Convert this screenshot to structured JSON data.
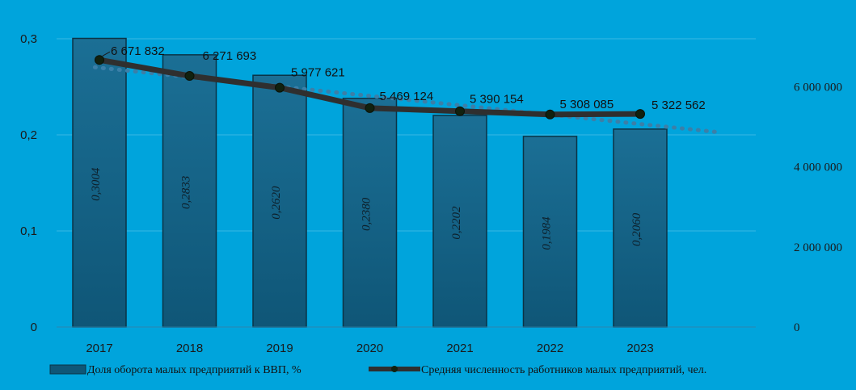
{
  "colors": {
    "background": "#00a4dc",
    "bar_fill": "#0f5677",
    "bar_stroke": "#0a3346",
    "line": "#2f2f2f",
    "marker": "#11210f",
    "trend": "#3b7fa8",
    "gridline": "#3ab7e3"
  },
  "chart_data": {
    "type": "bar",
    "categories": [
      "2017",
      "2018",
      "2019",
      "2020",
      "2021",
      "2022",
      "2023"
    ],
    "y_left": {
      "ticks": [
        "0",
        "0,1",
        "0,2",
        "0,3"
      ],
      "ylim": [
        0,
        0.3
      ]
    },
    "y_right": {
      "ticks": [
        "0",
        "2 000 000",
        "4 000 000",
        "6 000 000"
      ],
      "ylim": [
        0,
        7200000
      ]
    },
    "series": [
      {
        "name": "Доля оборота малых предприятий к ВВП, %",
        "type": "bar",
        "axis": "left",
        "values": [
          0.3004,
          0.2833,
          0.262,
          0.238,
          0.2202,
          0.1984,
          0.206
        ],
        "labels": [
          "0,3004",
          "0,2833",
          "0,2620",
          "0,2380",
          "0,2202",
          "0,1984",
          "0,2060"
        ]
      },
      {
        "name": "Средняя численность работников малых предприятий, чел.",
        "type": "line",
        "axis": "right",
        "values": [
          6671832,
          6271693,
          5977621,
          5469124,
          5390154,
          5308085,
          5322562
        ],
        "labels": [
          "6 671 832",
          "6 271 693",
          "5 977 621",
          "5 469 124",
          "5 390 154",
          "5 308 085",
          "5 322 562"
        ]
      }
    ],
    "trendline": {
      "style": "dotted",
      "axis": "right",
      "extends_past_last_category": true
    },
    "legend_position": "bottom"
  }
}
